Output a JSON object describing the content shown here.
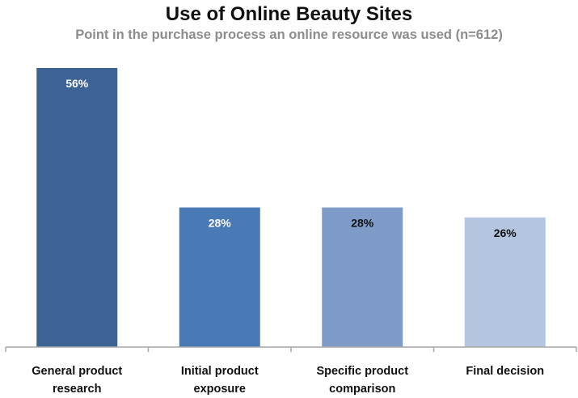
{
  "chart_data": {
    "type": "bar",
    "title": "Use of Online Beauty Sites",
    "subtitle": "Point in the purchase process an online resource was used (n=612)",
    "categories": [
      [
        "General product",
        "research"
      ],
      [
        "Initial product",
        "exposure"
      ],
      [
        "Specific product",
        "comparison"
      ],
      [
        "Final decision"
      ]
    ],
    "values": [
      56,
      28,
      28,
      26
    ],
    "value_labels": [
      "56%",
      "28%",
      "28%",
      "26%"
    ],
    "bar_colors": [
      "#3d6295",
      "#4a7ab6",
      "#7f9cc8",
      "#b4c5e0"
    ],
    "label_colors": [
      "#ffffff",
      "#ffffff",
      "#111111",
      "#111111"
    ],
    "xlabel": "",
    "ylabel": "",
    "ylim": [
      0,
      56
    ],
    "grid": false,
    "legend": "none"
  }
}
